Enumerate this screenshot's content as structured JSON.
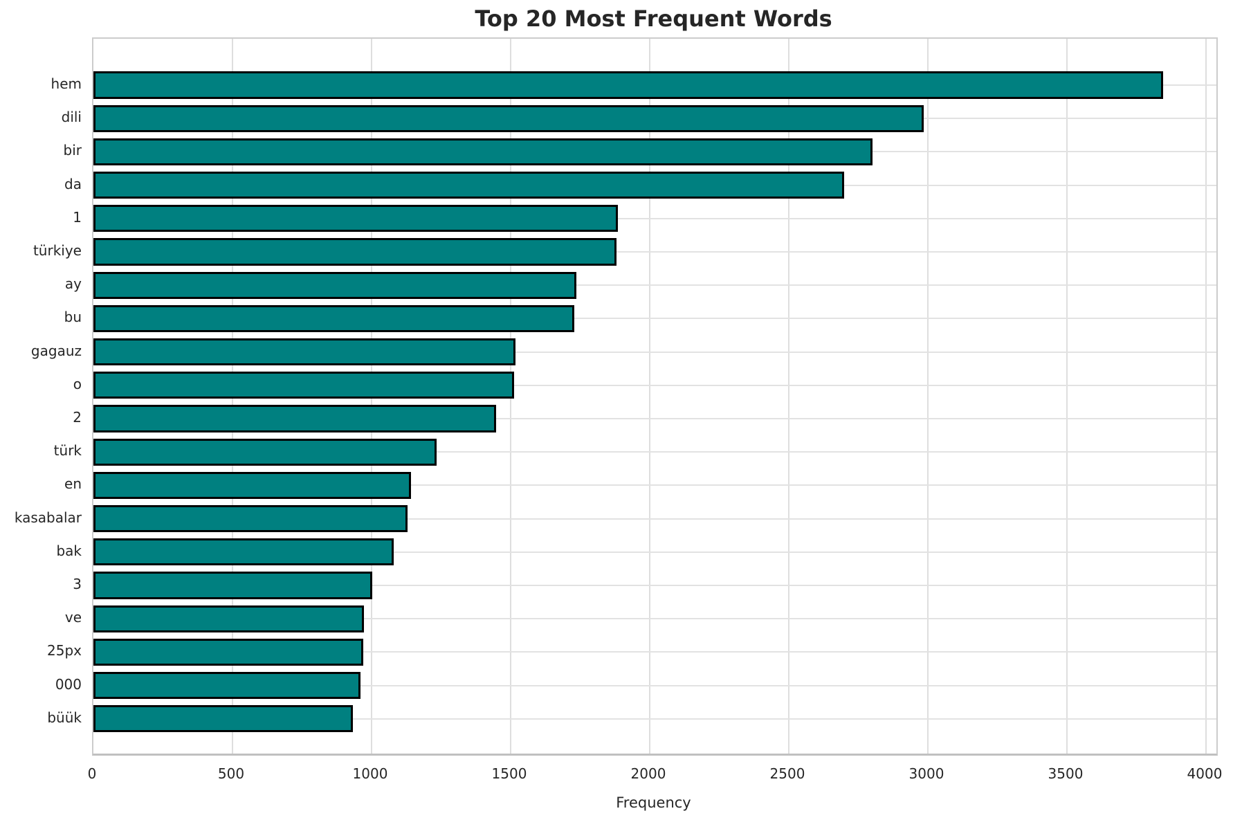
{
  "chart_data": {
    "type": "bar",
    "orientation": "horizontal",
    "title": "Top 20 Most Frequent Words",
    "xlabel": "Frequency",
    "ylabel": "",
    "categories": [
      "hem",
      "dili",
      "bir",
      "da",
      "1",
      "türkiye",
      "ay",
      "bu",
      "gagauz",
      "o",
      "2",
      "türk",
      "en",
      "kasabalar",
      "bak",
      "3",
      "ve",
      "25px",
      "000",
      "büük"
    ],
    "values": [
      3845,
      2985,
      2800,
      2700,
      1885,
      1880,
      1737,
      1730,
      1517,
      1513,
      1447,
      1233,
      1142,
      1129,
      1080,
      1003,
      973,
      971,
      961,
      934
    ],
    "xticks": [
      0,
      500,
      1000,
      1500,
      2000,
      2500,
      3000,
      3500,
      4000
    ],
    "xlim": [
      0,
      4037
    ],
    "grid": true,
    "legend_position": "none",
    "bar_color": "#008080",
    "bar_edge_color": "#000000",
    "grid_color": "#dedede",
    "text_color": "#262626"
  }
}
